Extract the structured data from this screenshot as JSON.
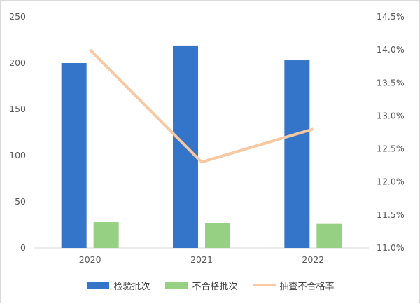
{
  "chart_data": {
    "type": "bar",
    "categories": [
      "2020",
      "2021",
      "2022"
    ],
    "series": [
      {
        "name": "检验批次",
        "kind": "bar",
        "axis": "left",
        "color": "#3474c9",
        "values": [
          200,
          219,
          203
        ]
      },
      {
        "name": "不合格批次",
        "kind": "bar",
        "axis": "left",
        "color": "#96d082",
        "values": [
          28,
          27,
          26
        ]
      },
      {
        "name": "抽查不合格率",
        "kind": "line",
        "axis": "right",
        "color": "#f7c8a2",
        "values": [
          14.0,
          12.3,
          12.8
        ]
      }
    ],
    "y_left": {
      "min": 0,
      "max": 250,
      "ticks": [
        "0",
        "50",
        "100",
        "150",
        "200",
        "250"
      ]
    },
    "y_right": {
      "min": 11.0,
      "max": 14.5,
      "unit": "%",
      "ticks": [
        "11.0%",
        "11.5%",
        "12.0%",
        "12.5%",
        "13.0%",
        "13.5%",
        "14.0%",
        "14.5%"
      ]
    },
    "grid": false,
    "legend_position": "bottom",
    "title": "",
    "xlabel": "",
    "ylabel": ""
  }
}
